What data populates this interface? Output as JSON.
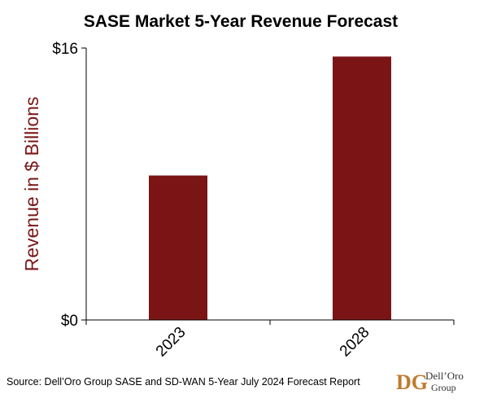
{
  "colors": {
    "bar": "#7b1515",
    "axis_label": "#7b1515",
    "axis_line": "#000000",
    "logo_accent": "#c07a2e"
  },
  "chart_data": {
    "type": "bar",
    "title": "SASE Market 5-Year Revenue Forecast",
    "xlabel": "",
    "ylabel": "Revenue in $ Billions",
    "categories": [
      "2023",
      "2028"
    ],
    "values": [
      8.5,
      15.5
    ],
    "ylim": [
      0,
      16
    ],
    "yticks": [
      {
        "value": 0,
        "label": "$0"
      },
      {
        "value": 16,
        "label": "$16"
      }
    ],
    "grid": false,
    "legend": "none"
  },
  "footer": {
    "source": "Source: Dell’Oro Group SASE and SD-WAN 5-Year July 2024 Forecast Report"
  },
  "logo": {
    "monogram": "DG",
    "name_line1": "Dell’Oro",
    "name_line2": "Group"
  }
}
